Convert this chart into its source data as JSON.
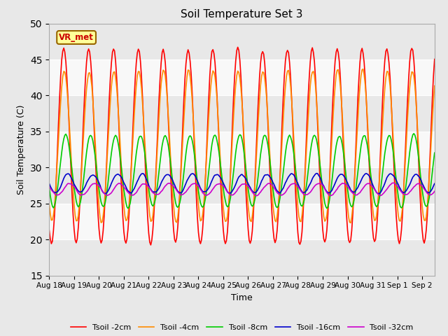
{
  "title": "Soil Temperature Set 3",
  "xlabel": "Time",
  "ylabel": "Soil Temperature (C)",
  "ylim": [
    15,
    50
  ],
  "yticks": [
    15,
    20,
    25,
    30,
    35,
    40,
    45,
    50
  ],
  "annotation": "VR_met",
  "bg_color": "#e8e8e8",
  "series": [
    {
      "label": "Tsoil -2cm",
      "color": "#ff0000",
      "lw": 1.2
    },
    {
      "label": "Tsoil -4cm",
      "color": "#ff8c00",
      "lw": 1.2
    },
    {
      "label": "Tsoil -8cm",
      "color": "#00cc00",
      "lw": 1.2
    },
    {
      "label": "Tsoil -16cm",
      "color": "#0000cc",
      "lw": 1.2
    },
    {
      "label": "Tsoil -32cm",
      "color": "#cc00cc",
      "lw": 1.2
    }
  ]
}
